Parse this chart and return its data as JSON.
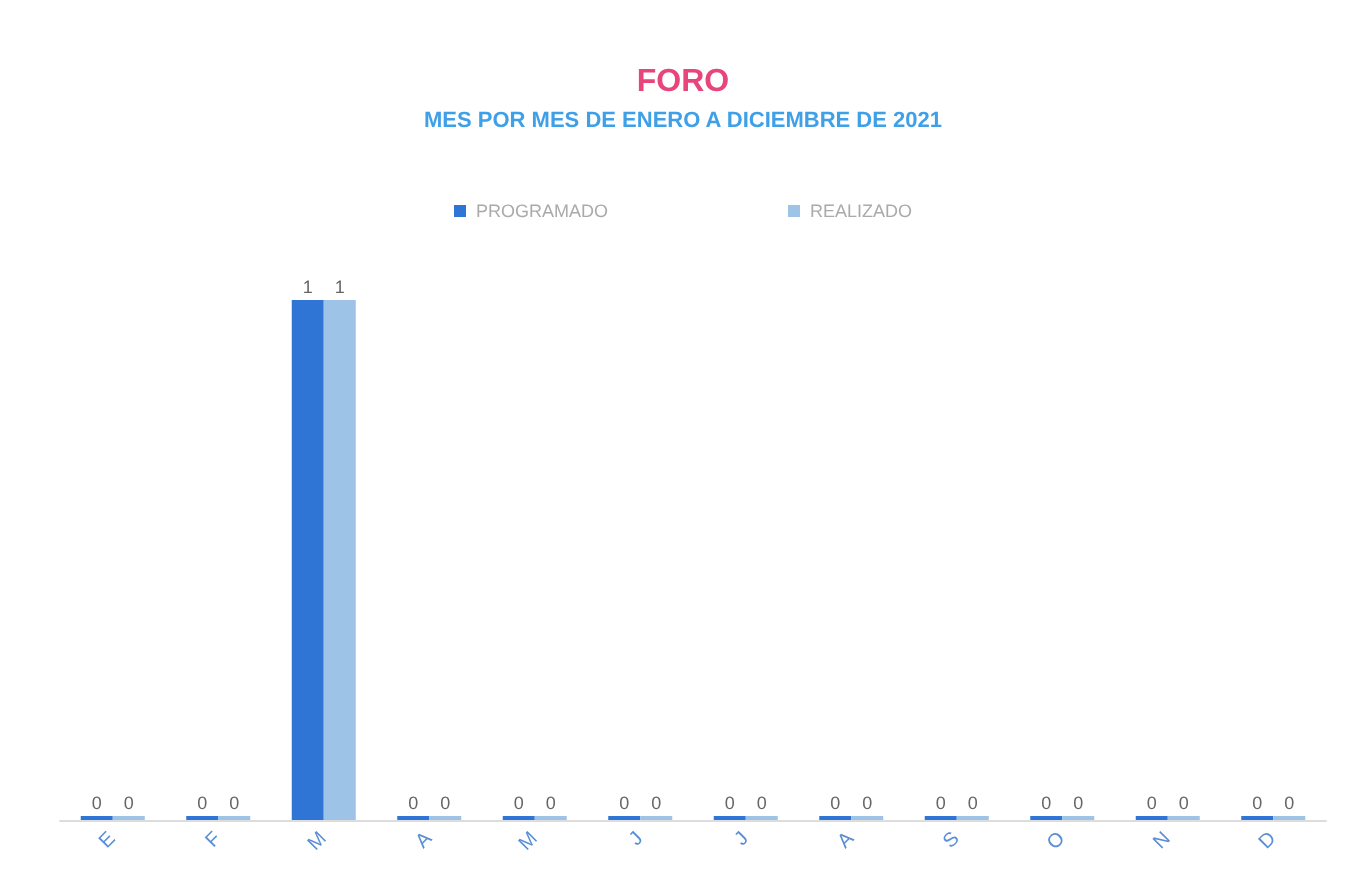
{
  "chart_data": {
    "type": "bar",
    "title": "FORO",
    "subtitle": "MES POR MES DE ENERO A DICIEMBRE DE 2021",
    "categories": [
      "E",
      "F",
      "M",
      "A",
      "M",
      "J",
      "J",
      "A",
      "S",
      "O",
      "N",
      "D"
    ],
    "series": [
      {
        "name": "PROGRAMADO",
        "color": "#2e75d6",
        "values": [
          0,
          0,
          1,
          0,
          0,
          0,
          0,
          0,
          0,
          0,
          0,
          0
        ]
      },
      {
        "name": "REALIZADO",
        "color": "#9dc3e6",
        "values": [
          0,
          0,
          1,
          0,
          0,
          0,
          0,
          0,
          0,
          0,
          0,
          0
        ]
      }
    ],
    "data_labels": true,
    "legend": "top",
    "grid": false
  }
}
